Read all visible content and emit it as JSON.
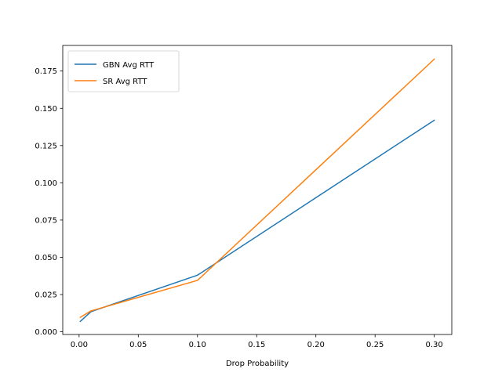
{
  "chart_data": {
    "type": "line",
    "title": "",
    "xlabel": "Drop Probability",
    "ylabel": "",
    "xlim": [
      -0.0138,
      0.3148
    ],
    "ylim": [
      -0.0018,
      0.1922
    ],
    "xticks": [
      0.0,
      0.05,
      0.1,
      0.15,
      0.2,
      0.25,
      0.3
    ],
    "xtick_labels": [
      "0.00",
      "0.05",
      "0.10",
      "0.15",
      "0.20",
      "0.25",
      "0.30"
    ],
    "yticks": [
      0.0,
      0.025,
      0.05,
      0.075,
      0.1,
      0.125,
      0.15,
      0.175
    ],
    "ytick_labels": [
      "0.000",
      "0.025",
      "0.050",
      "0.075",
      "0.100",
      "0.125",
      "0.150",
      "0.175"
    ],
    "grid": false,
    "legend_position": "top-left",
    "x": [
      0.001,
      0.01,
      0.1,
      0.3
    ],
    "series": [
      {
        "name": "GBN Avg RTT",
        "color": "#1f77b4",
        "values": [
          0.007,
          0.0135,
          0.038,
          0.142
        ]
      },
      {
        "name": "SR Avg RTT",
        "color": "#ff7f0e",
        "values": [
          0.0097,
          0.014,
          0.0345,
          0.183
        ]
      }
    ]
  }
}
